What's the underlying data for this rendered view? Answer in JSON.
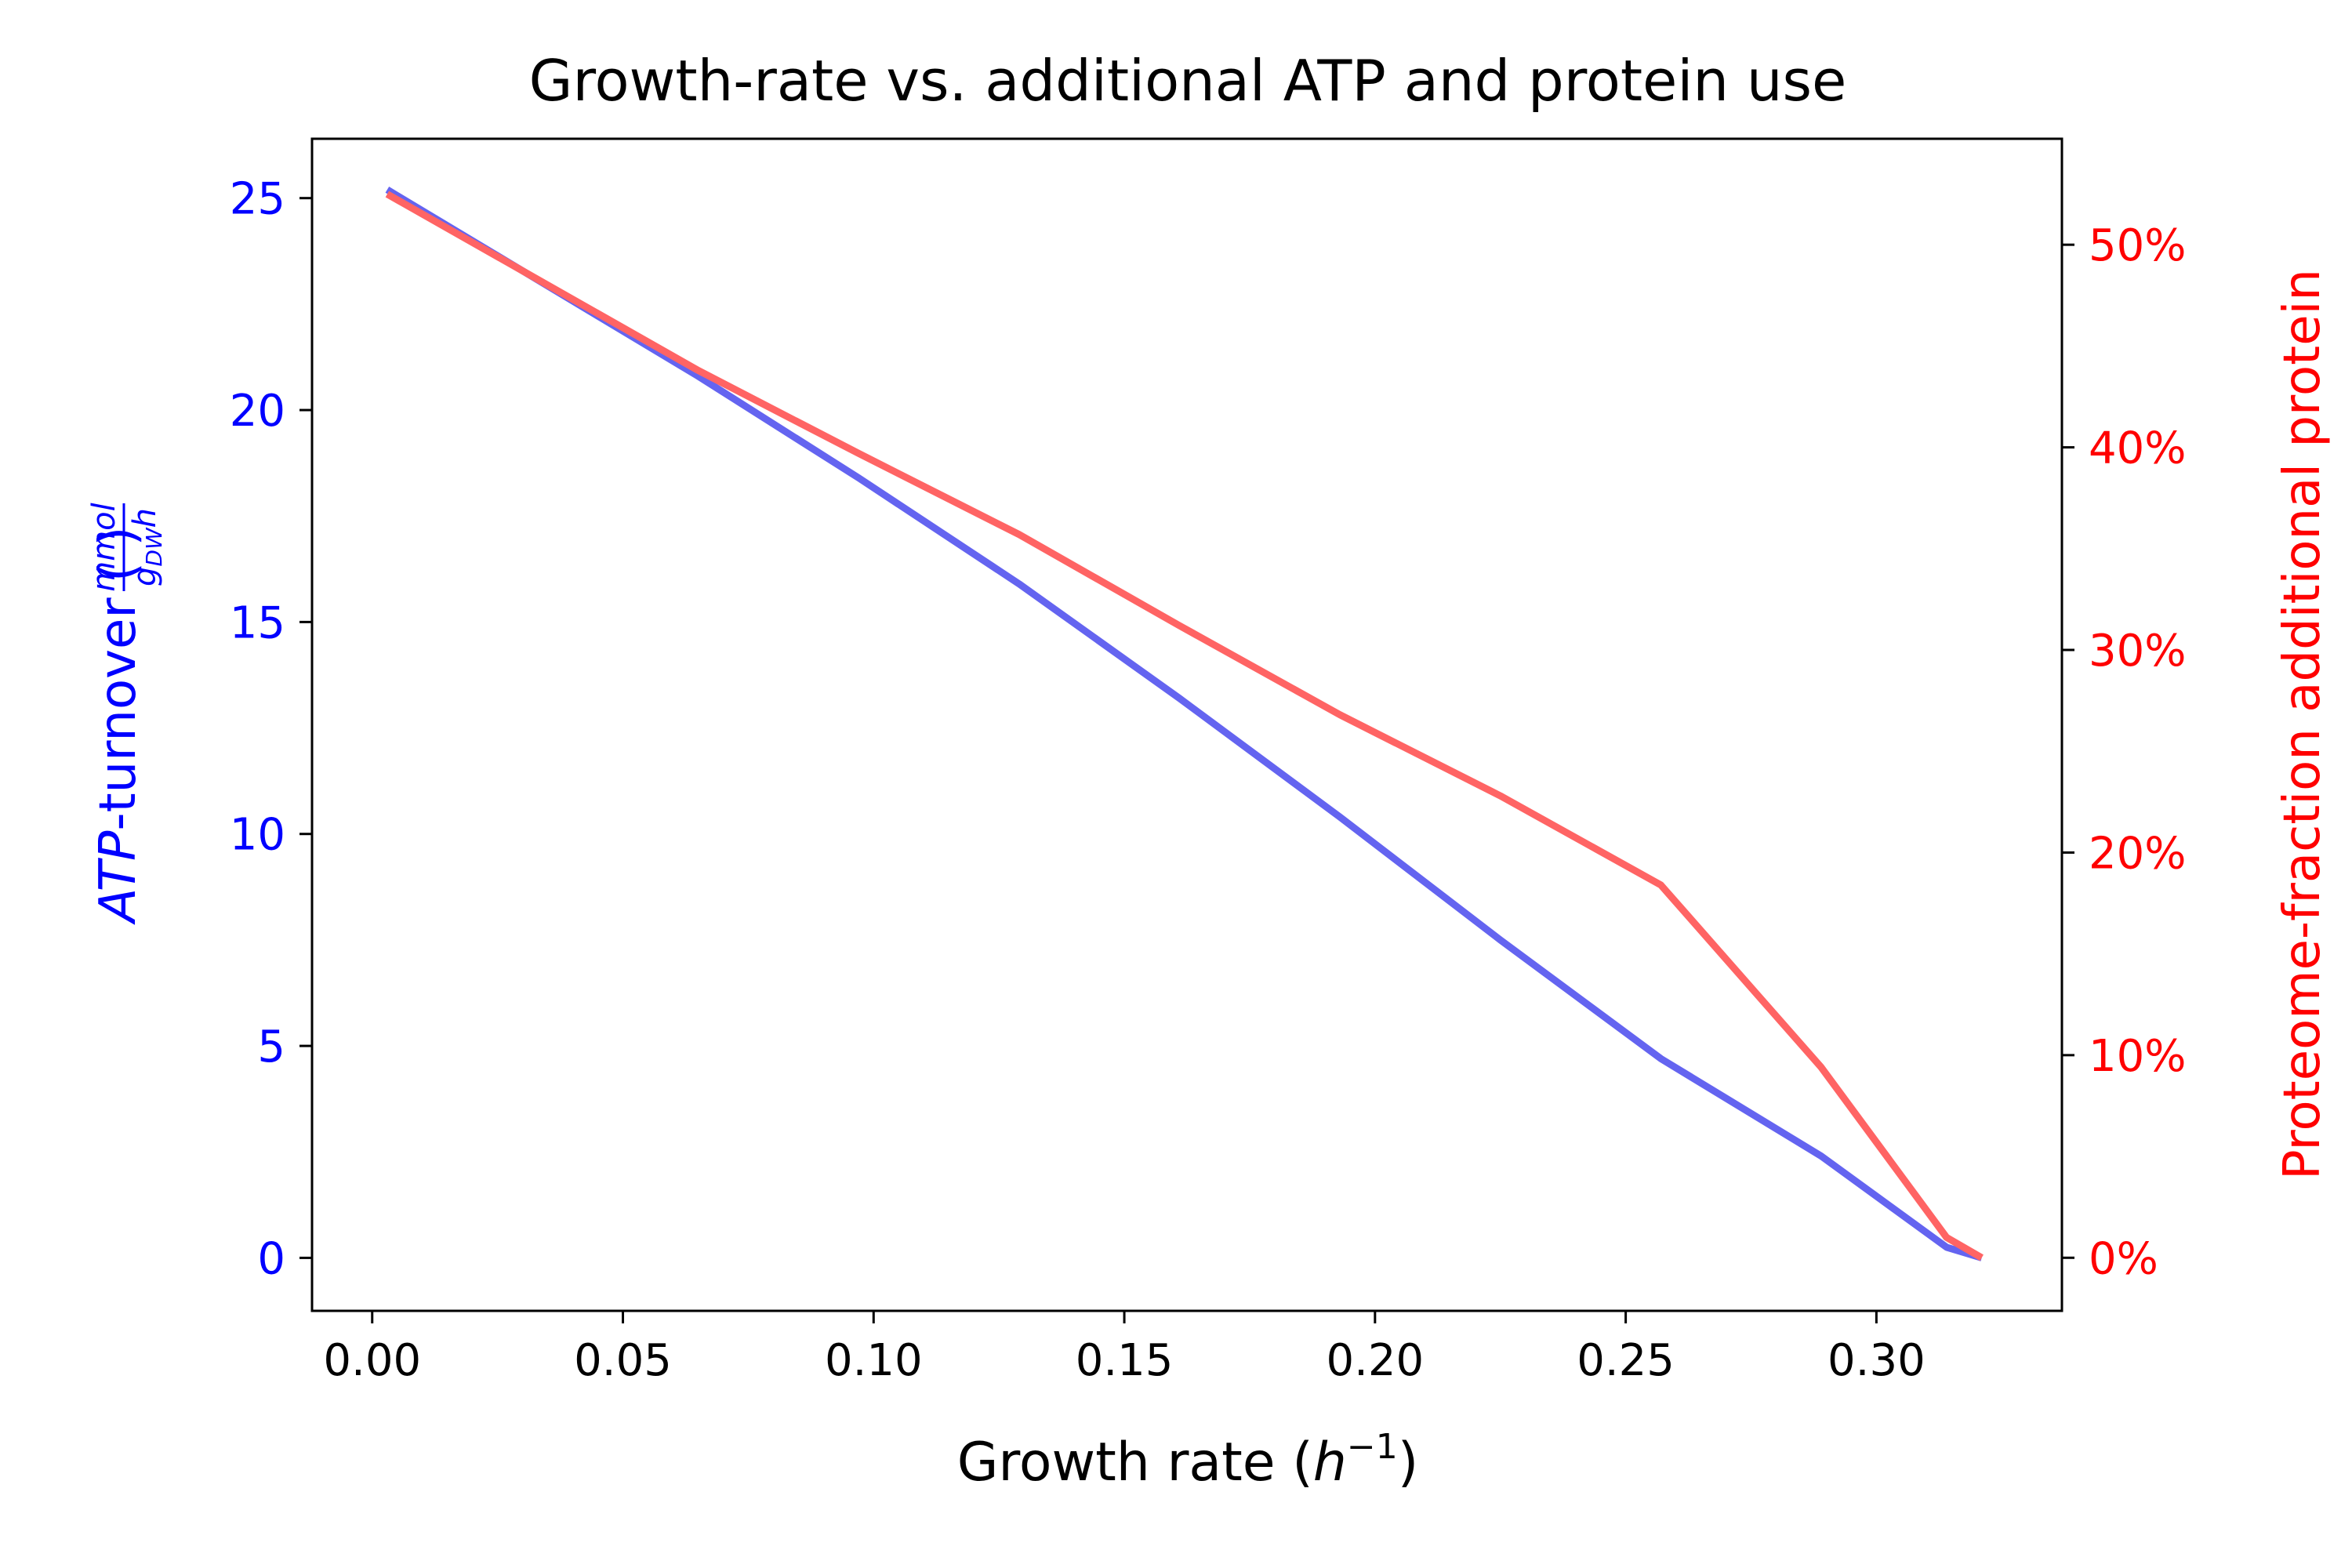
{
  "chart_data": {
    "type": "line",
    "title": "Growth-rate vs. additional ATP and protein use",
    "xlabel": "Growth rate",
    "xlabel_unit": "h",
    "xlabel_unit_exp": "−1",
    "ylabel_left": "ATP",
    "ylabel_left_suffix": "-turnover",
    "ylabel_left_unit_num": "mmol",
    "ylabel_left_unit_den": "g",
    "ylabel_left_unit_den_sub": "DW",
    "ylabel_left_unit_den_tail": "h",
    "ylabel_right": "Proteome-fraction additional protein",
    "xlim": [
      -0.012,
      0.337
    ],
    "ylim_left": [
      -1.25,
      26.4
    ],
    "ylim_right": [
      -0.0262,
      0.5523
    ],
    "x_ticks": [
      0.0,
      0.05,
      0.1,
      0.15,
      0.2,
      0.25,
      0.3
    ],
    "x_tick_labels": [
      "0.00",
      "0.05",
      "0.10",
      "0.15",
      "0.20",
      "0.25",
      "0.30"
    ],
    "y_left_ticks": [
      0,
      5,
      10,
      15,
      20,
      25
    ],
    "y_left_tick_labels": [
      "0",
      "5",
      "10",
      "15",
      "20",
      "25"
    ],
    "y_right_ticks": [
      0,
      0.1,
      0.2,
      0.3,
      0.4,
      0.5
    ],
    "y_right_tick_labels": [
      "0%",
      "10%",
      "20%",
      "30%",
      "40%",
      "50%"
    ],
    "grid": false,
    "series": [
      {
        "axis": "left",
        "color": "#6464f0",
        "x": [
          0.003,
          0.065,
          0.097,
          0.129,
          0.161,
          0.193,
          0.225,
          0.257,
          0.289,
          0.314,
          0.321
        ],
        "y": [
          25.2,
          20.8,
          18.4,
          15.9,
          13.2,
          10.4,
          7.5,
          4.7,
          2.4,
          0.25,
          0.0
        ]
      },
      {
        "axis": "right",
        "color": "#ff6464",
        "x": [
          0.003,
          0.065,
          0.097,
          0.129,
          0.161,
          0.193,
          0.225,
          0.257,
          0.289,
          0.314,
          0.321
        ],
        "y": [
          0.525,
          0.438,
          0.397,
          0.357,
          0.312,
          0.268,
          0.228,
          0.184,
          0.094,
          0.01,
          0.0
        ]
      }
    ]
  }
}
